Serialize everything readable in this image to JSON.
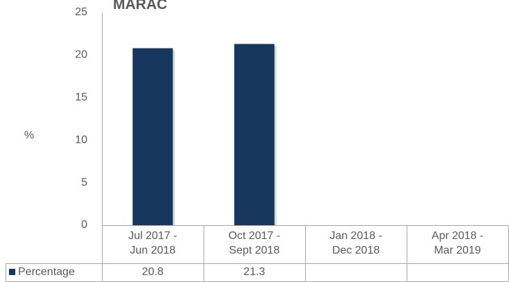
{
  "chart_data": {
    "type": "bar",
    "title": "MARAC",
    "y_label": "%",
    "categories": [
      [
        "Jul 2017 -",
        "Jun 2018"
      ],
      [
        "Oct 2017 -",
        "Sept 2018"
      ],
      [
        "Jan 2018 -",
        "Dec 2018"
      ],
      [
        "Apr 2018 -",
        "Mar 2019"
      ]
    ],
    "series": [
      {
        "name": "Percentage",
        "color": "#17375e",
        "values": [
          20.8,
          21.3,
          null,
          null
        ]
      }
    ],
    "ylim": [
      0,
      25
    ],
    "yticks": [
      0,
      5,
      10,
      15,
      20,
      25
    ],
    "grid": false
  }
}
